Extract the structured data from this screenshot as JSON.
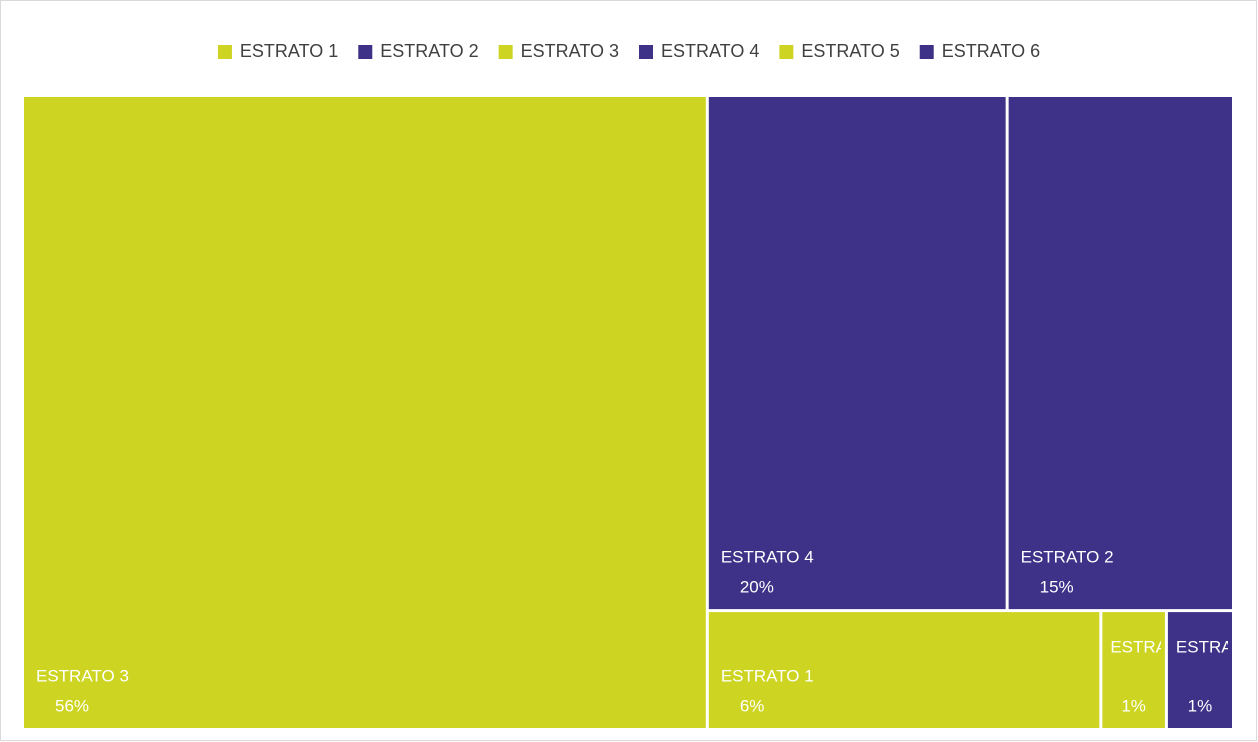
{
  "chart_data": {
    "type": "treemap",
    "categories": [
      "ESTRATO 1",
      "ESTRATO 2",
      "ESTRATO 3",
      "ESTRATO 4",
      "ESTRATO 5",
      "ESTRATO 6"
    ],
    "values": [
      6,
      15,
      56,
      20,
      1,
      1
    ],
    "value_labels": [
      "6%",
      "15%",
      "56%",
      "20%",
      "1%",
      "1%"
    ],
    "colors": [
      "#cdd422",
      "#3d3188",
      "#cdd422",
      "#3d3188",
      "#cdd422",
      "#3d3188"
    ],
    "legend": "top"
  }
}
